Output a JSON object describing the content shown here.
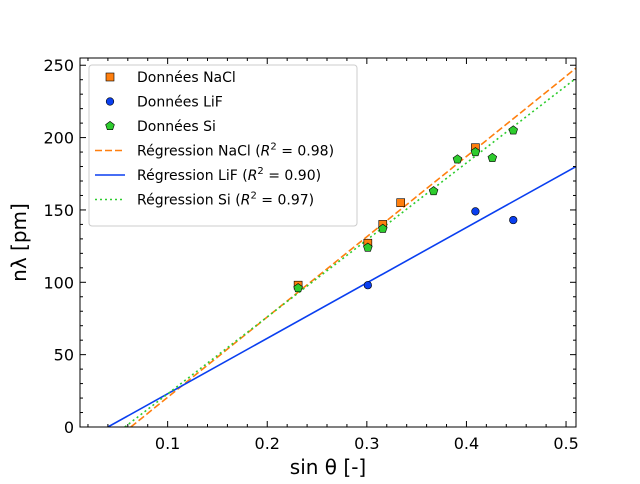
{
  "chart_data": {
    "type": "scatter",
    "title": "",
    "xlabel": "sin θ   [-]",
    "ylabel": "nλ   [pm]",
    "xlim": [
      0.012,
      0.51
    ],
    "ylim": [
      0,
      255
    ],
    "x_ticks": [
      "0.1",
      "0.2",
      "0.3",
      "0.4",
      "0.5"
    ],
    "x_tick_values": [
      0.1,
      0.2,
      0.3,
      0.4,
      0.5
    ],
    "y_ticks": [
      "0",
      "50",
      "100",
      "150",
      "200",
      "250"
    ],
    "y_tick_values": [
      0,
      50,
      100,
      150,
      200,
      250
    ],
    "legend_position": "top-left",
    "series": [
      {
        "name": "Données NaCl",
        "kind": "scatter",
        "marker": "square",
        "color": "#ff7f0e",
        "x": [
          0.231,
          0.301,
          0.316,
          0.334,
          0.409
        ],
        "y": [
          98,
          127,
          140,
          155,
          193
        ]
      },
      {
        "name": "Données LiF",
        "kind": "scatter",
        "marker": "circle",
        "color": "#0a3ff0",
        "x": [
          0.301,
          0.409,
          0.447
        ],
        "y": [
          98,
          149,
          143
        ]
      },
      {
        "name": "Données Si",
        "kind": "scatter",
        "marker": "pentagon",
        "color": "#2ecc2e",
        "x": [
          0.231,
          0.301,
          0.316,
          0.367,
          0.391,
          0.409,
          0.426,
          0.447
        ],
        "y": [
          96,
          124,
          137,
          163,
          185,
          190,
          186,
          205
        ]
      },
      {
        "name": "Régression NaCl",
        "r2": "0.98",
        "kind": "line",
        "dash": "dashed",
        "color": "#ff7f0e",
        "x": [
          0.063,
          0.51
        ],
        "y": [
          0,
          248
        ]
      },
      {
        "name": "Régression LiF",
        "r2": "0.90",
        "kind": "line",
        "dash": "solid",
        "color": "#0a3ff0",
        "x": [
          0.04,
          0.51
        ],
        "y": [
          0,
          180
        ]
      },
      {
        "name": "Régression Si",
        "r2": "0.97",
        "kind": "line",
        "dash": "dotted",
        "color": "#2ecc2e",
        "x": [
          0.057,
          0.51
        ],
        "y": [
          0,
          241
        ]
      }
    ]
  }
}
